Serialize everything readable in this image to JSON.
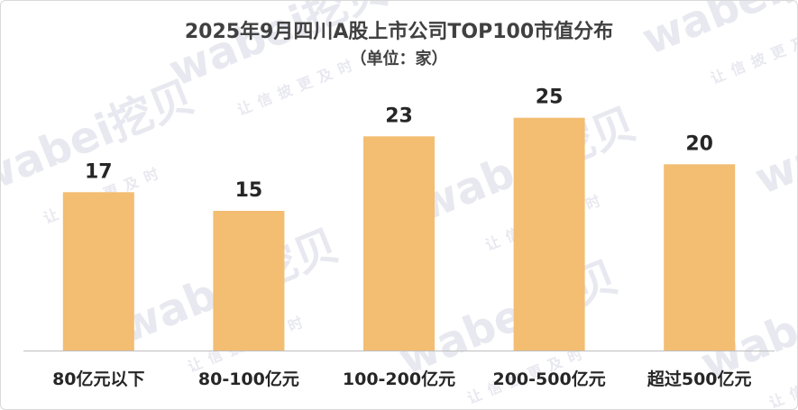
{
  "chart_data": {
    "type": "bar",
    "title": "2025年9月四川A股上市公司TOP100市值分布",
    "subtitle": "（单位：家）",
    "categories": [
      "80亿元以下",
      "80-100亿元",
      "100-200亿元",
      "200-500亿元",
      "超过500亿元"
    ],
    "values": [
      17,
      15,
      23,
      25,
      20
    ],
    "xlabel": "",
    "ylabel": "",
    "ylim": [
      0,
      30
    ],
    "grid": false,
    "legend": "none",
    "bar_color": "#f3bd72",
    "axis_color": "#bfbfbf",
    "label_color": "#262626"
  },
  "watermark": {
    "logo": "wabei挖贝",
    "slogan": "让信披更及时"
  }
}
